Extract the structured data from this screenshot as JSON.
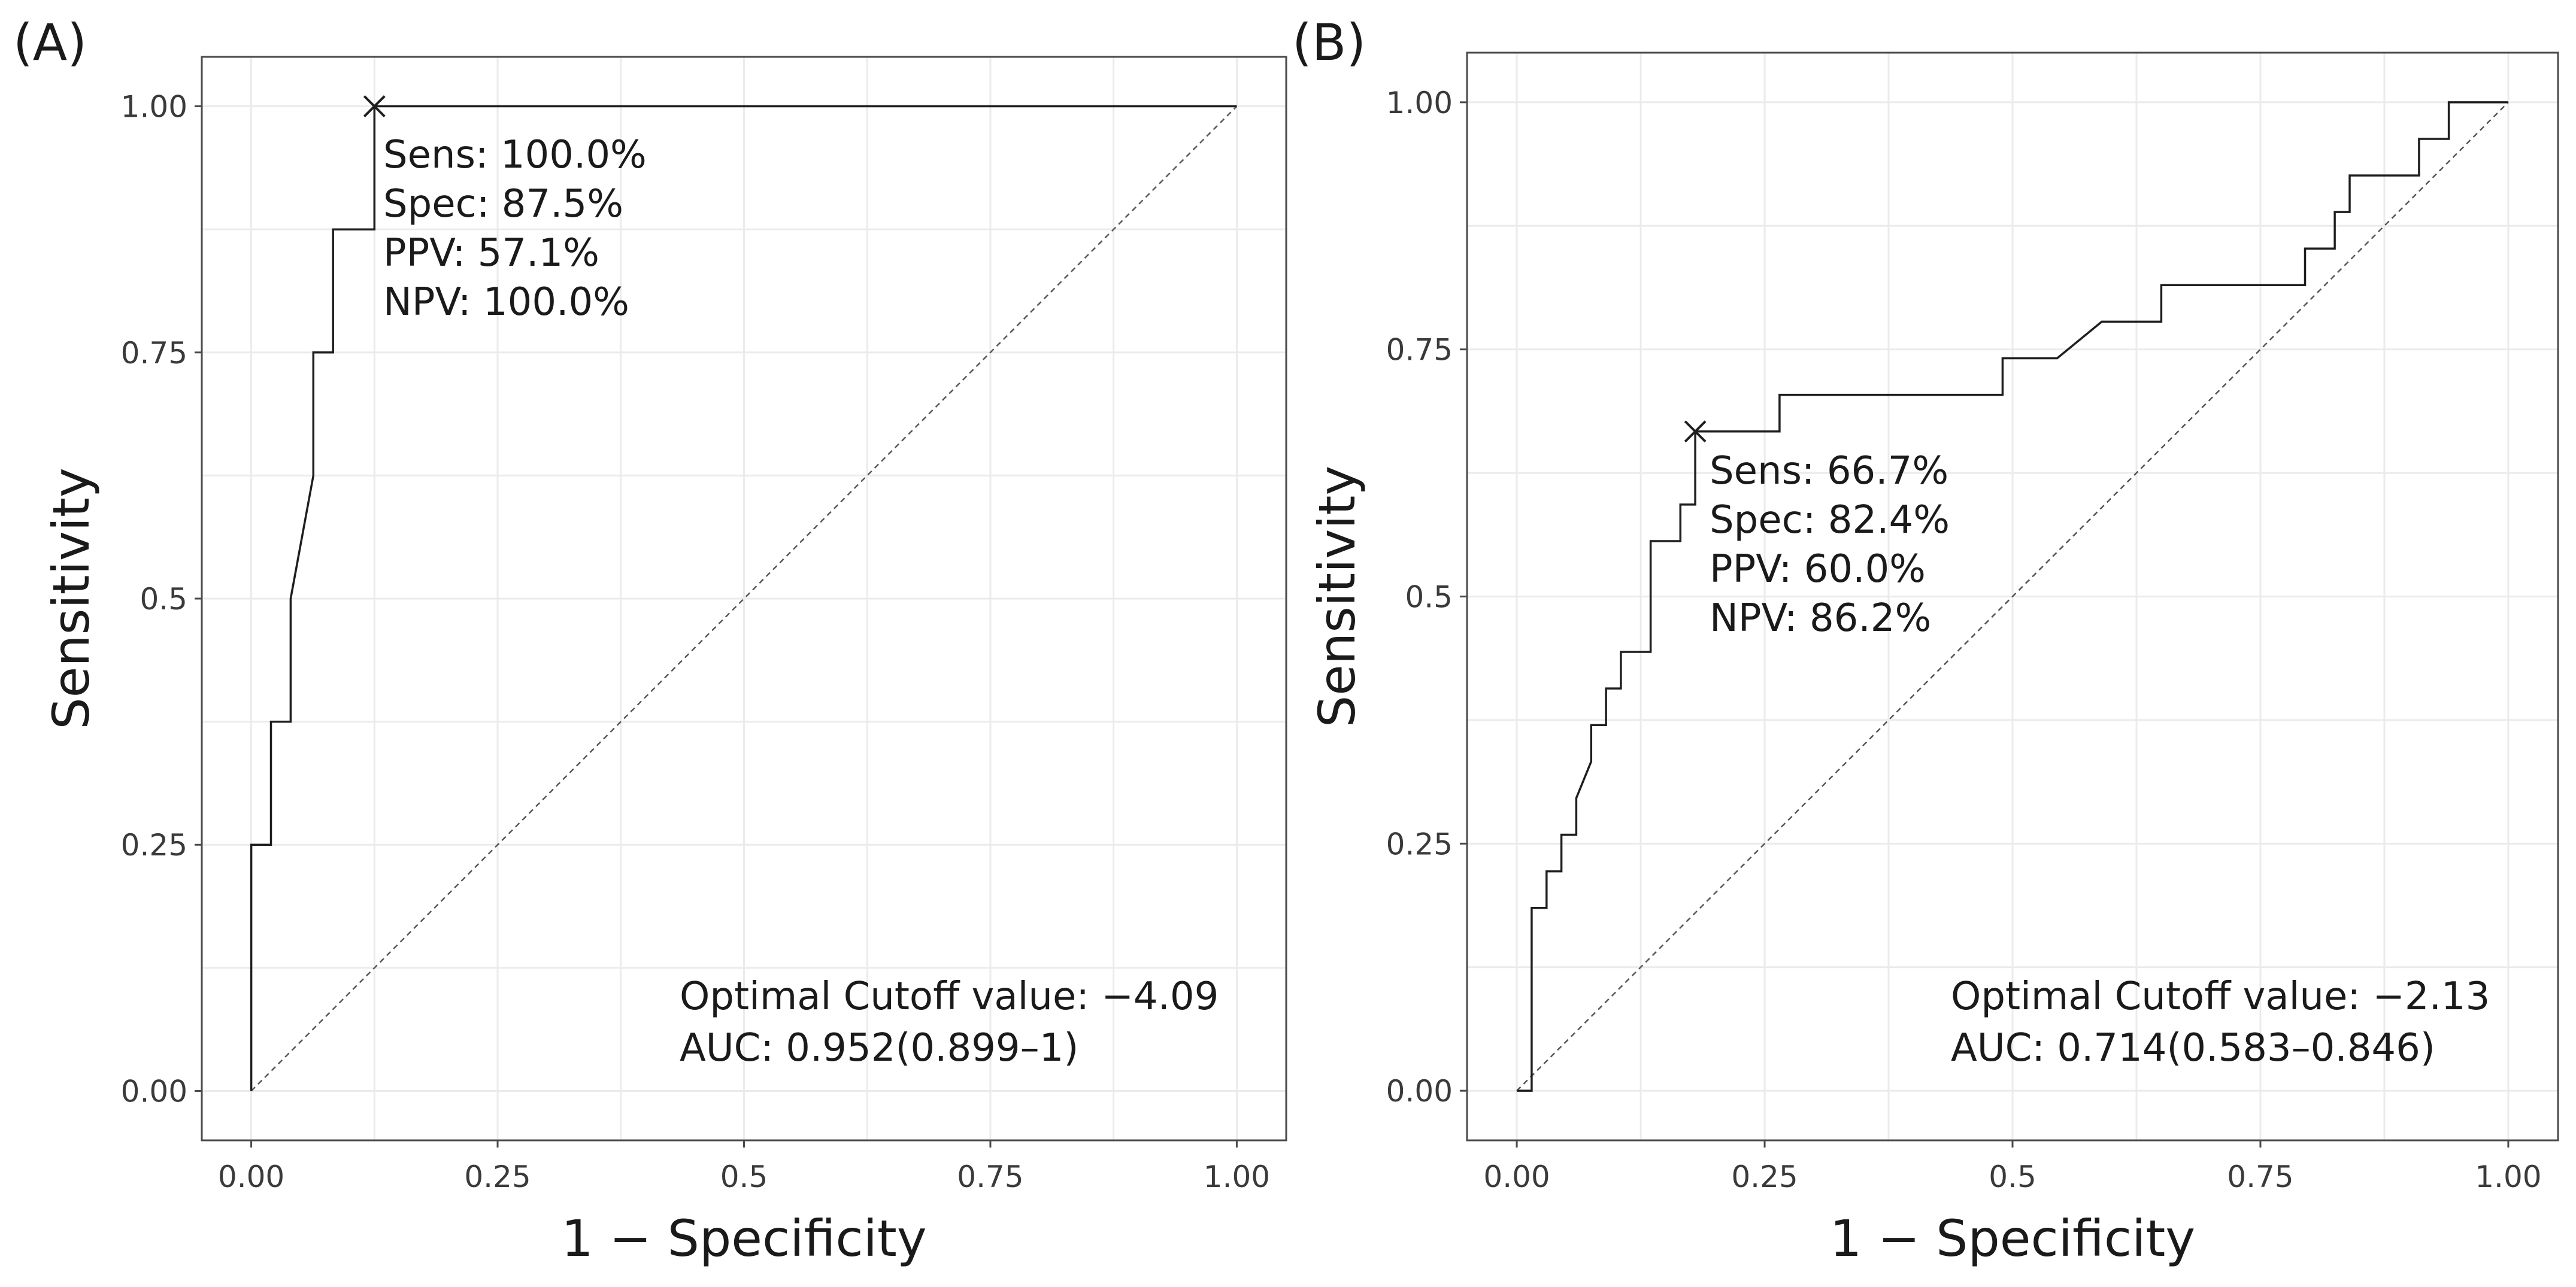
{
  "chart_data": [
    {
      "panel": "(A)",
      "type": "line",
      "title": "",
      "xlabel": "1 − Specificity",
      "ylabel": "Sensitivity",
      "xlim": [
        0,
        1
      ],
      "ylim": [
        0,
        1
      ],
      "x_ticks": [
        0,
        0.25,
        0.5,
        0.75,
        1
      ],
      "x_tick_labels": [
        "0.00",
        "0.25",
        "0.5",
        "0.75",
        "1.00"
      ],
      "y_ticks": [
        0,
        0.25,
        0.5,
        0.75,
        1
      ],
      "y_tick_labels": [
        "0.00",
        "0.25",
        "0.5",
        "0.75",
        "1.00"
      ],
      "grid": true,
      "series": [
        {
          "name": "ROC",
          "points": [
            [
              0,
              0
            ],
            [
              0,
              0.25
            ],
            [
              0.02,
              0.25
            ],
            [
              0.02,
              0.375
            ],
            [
              0.04,
              0.375
            ],
            [
              0.04,
              0.5
            ],
            [
              0.063,
              0.625
            ],
            [
              0.063,
              0.75
            ],
            [
              0.083,
              0.75
            ],
            [
              0.083,
              0.875
            ],
            [
              0.125,
              0.875
            ],
            [
              0.125,
              1
            ],
            [
              1,
              1
            ]
          ]
        },
        {
          "name": "reference",
          "points": [
            [
              0,
              0
            ],
            [
              1,
              1
            ]
          ]
        }
      ],
      "optimal_point": [
        0.125,
        1.0
      ],
      "annotation_lines": [
        "Sens: 100.0%",
        "Spec: 87.5%",
        "PPV: 57.1%",
        "NPV: 100.0%"
      ],
      "cutoff_label": "Optimal Cutoff value: −4.09",
      "auc_label": "AUC: 0.952(0.899–1)"
    },
    {
      "panel": "(B)",
      "type": "line",
      "title": "",
      "xlabel": "1 − Specificity",
      "ylabel": "Sensitivity",
      "xlim": [
        0,
        1
      ],
      "ylim": [
        0,
        1
      ],
      "x_ticks": [
        0,
        0.25,
        0.5,
        0.75,
        1
      ],
      "x_tick_labels": [
        "0.00",
        "0.25",
        "0.5",
        "0.75",
        "1.00"
      ],
      "y_ticks": [
        0,
        0.25,
        0.5,
        0.75,
        1
      ],
      "y_tick_labels": [
        "0.00",
        "0.25",
        "0.5",
        "0.75",
        "1.00"
      ],
      "grid": true,
      "series": [
        {
          "name": "ROC",
          "points": [
            [
              0,
              0
            ],
            [
              0.015,
              0
            ],
            [
              0.015,
              0.185
            ],
            [
              0.03,
              0.185
            ],
            [
              0.03,
              0.222
            ],
            [
              0.045,
              0.222
            ],
            [
              0.045,
              0.259
            ],
            [
              0.06,
              0.259
            ],
            [
              0.06,
              0.296
            ],
            [
              0.075,
              0.333
            ],
            [
              0.075,
              0.37
            ],
            [
              0.09,
              0.37
            ],
            [
              0.09,
              0.407
            ],
            [
              0.105,
              0.407
            ],
            [
              0.105,
              0.444
            ],
            [
              0.135,
              0.444
            ],
            [
              0.135,
              0.556
            ],
            [
              0.165,
              0.556
            ],
            [
              0.165,
              0.593
            ],
            [
              0.18,
              0.593
            ],
            [
              0.18,
              0.667
            ],
            [
              0.265,
              0.667
            ],
            [
              0.265,
              0.704
            ],
            [
              0.49,
              0.704
            ],
            [
              0.49,
              0.741
            ],
            [
              0.545,
              0.741
            ],
            [
              0.59,
              0.778
            ],
            [
              0.65,
              0.778
            ],
            [
              0.65,
              0.815
            ],
            [
              0.795,
              0.815
            ],
            [
              0.795,
              0.852
            ],
            [
              0.825,
              0.852
            ],
            [
              0.825,
              0.889
            ],
            [
              0.84,
              0.889
            ],
            [
              0.84,
              0.926
            ],
            [
              0.91,
              0.926
            ],
            [
              0.91,
              0.963
            ],
            [
              0.94,
              0.963
            ],
            [
              0.94,
              1
            ],
            [
              1,
              1
            ]
          ]
        },
        {
          "name": "reference",
          "points": [
            [
              0,
              0
            ],
            [
              1,
              1
            ]
          ]
        }
      ],
      "optimal_point": [
        0.18,
        0.667
      ],
      "annotation_lines": [
        "Sens: 66.7%",
        "Spec: 82.4%",
        "PPV: 60.0%",
        "NPV: 86.2%"
      ],
      "cutoff_label": "Optimal Cutoff value: −2.13",
      "auc_label": "AUC: 0.714(0.583–0.846)"
    }
  ]
}
